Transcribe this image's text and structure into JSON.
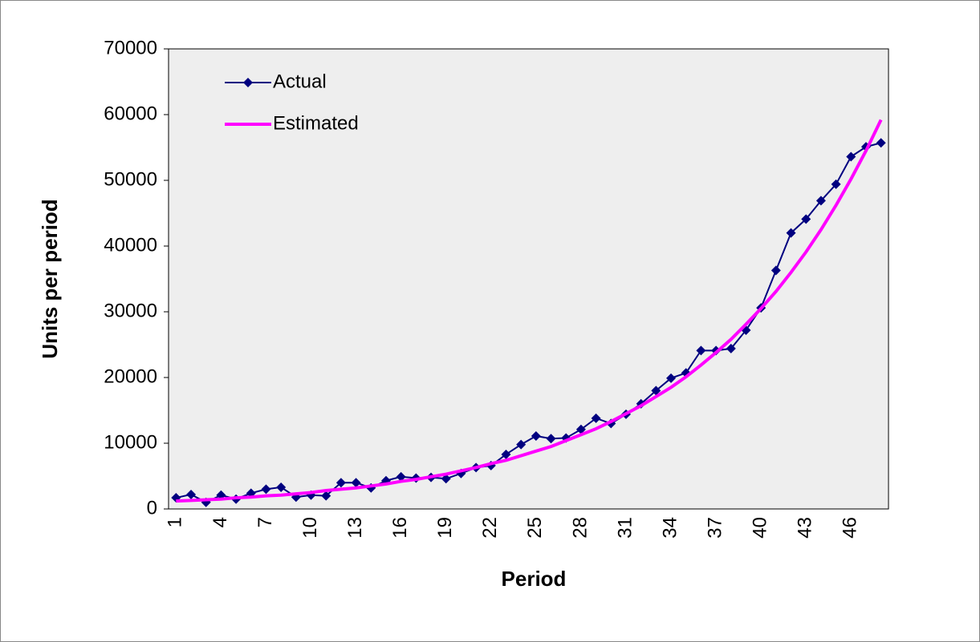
{
  "chart_data": {
    "type": "line",
    "x_label": "Period",
    "y_label": "Units per period",
    "categories": [
      "1",
      null,
      null,
      "4",
      null,
      null,
      "7",
      null,
      null,
      "10",
      null,
      null,
      "13",
      null,
      null,
      "16",
      null,
      null,
      "19",
      null,
      null,
      "22",
      null,
      null,
      "25",
      null,
      null,
      "28",
      null,
      null,
      "31",
      null,
      null,
      "34",
      null,
      null,
      "37",
      null,
      null,
      "40",
      null,
      null,
      "43",
      null,
      null,
      "46",
      null,
      null
    ],
    "series": [
      {
        "name": "Actual",
        "color": "#000080",
        "marker": "diamond",
        "values": [
          1700,
          2200,
          1000,
          2100,
          1500,
          2400,
          3000,
          3300,
          1800,
          2100,
          2000,
          4000,
          4000,
          3200,
          4300,
          4900,
          4700,
          4800,
          4600,
          5400,
          6300,
          6600,
          8300,
          9800,
          11100,
          10700,
          10800,
          12100,
          13800,
          13000,
          14400,
          16000,
          18000,
          19900,
          20700,
          24100,
          24100,
          24400,
          27200,
          30600,
          36300,
          42000,
          44100,
          46900,
          49400,
          53600,
          55100,
          55700
        ]
      },
      {
        "name": "Estimated",
        "color": "#ff00ff",
        "marker": "none",
        "values": [
          1200,
          1300,
          1400,
          1500,
          1700,
          1800,
          2000,
          2100,
          2300,
          2500,
          2800,
          3000,
          3200,
          3500,
          3800,
          4200,
          4500,
          4900,
          5300,
          5800,
          6300,
          6900,
          7400,
          8100,
          8800,
          9500,
          10400,
          11300,
          12200,
          13300,
          14500,
          15700,
          17100,
          18500,
          20100,
          21900,
          23800,
          25800,
          28100,
          30500,
          33100,
          36000,
          39100,
          42500,
          46200,
          50200,
          54500,
          59200
        ]
      }
    ],
    "ylim": [
      0,
      70000
    ],
    "yticks": [
      0,
      10000,
      20000,
      30000,
      40000,
      50000,
      60000,
      70000
    ],
    "grid": false,
    "legend": "top-left",
    "plot_background": "#eeeeee"
  }
}
